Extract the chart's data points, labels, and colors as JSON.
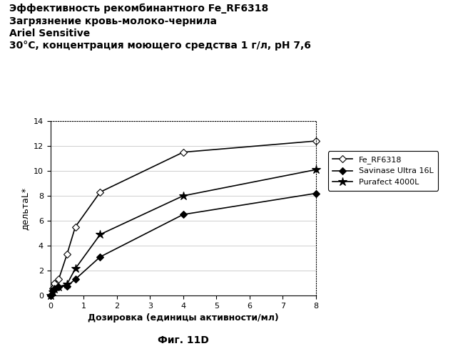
{
  "title_lines": [
    "Эффективность рекомбинантного Fe_RF6318",
    "Загрязнение кровь-молоко-чернила",
    "Ariel Sensitive",
    "30°C, концентрация моющего средства 1 г/л, pH 7,6"
  ],
  "xlabel": "Дозировка (единицы активности/мл)",
  "ylabel": "дельтаL*",
  "figcaption": "Фиг. 11D",
  "xlim": [
    0,
    8
  ],
  "ylim": [
    0,
    14
  ],
  "xticks": [
    0,
    1,
    2,
    3,
    4,
    5,
    6,
    7,
    8
  ],
  "yticks": [
    0,
    2,
    4,
    6,
    8,
    10,
    12,
    14
  ],
  "series": [
    {
      "label": "Fe_RF6318",
      "x": [
        0,
        0.0625,
        0.125,
        0.25,
        0.5,
        0.75,
        1.5,
        4.0,
        8.0
      ],
      "y": [
        0,
        0.6,
        1.0,
        1.3,
        3.3,
        5.5,
        8.3,
        11.5,
        12.4
      ],
      "marker": "D",
      "markersize": 5,
      "markerfacecolor": "white",
      "markeredgecolor": "#000000",
      "color": "#000000",
      "linewidth": 1.2
    },
    {
      "label": "Savinase Ultra 16L",
      "x": [
        0,
        0.0625,
        0.125,
        0.25,
        0.5,
        0.75,
        1.5,
        4.0,
        8.0
      ],
      "y": [
        0,
        0.4,
        0.5,
        0.7,
        0.75,
        1.3,
        3.1,
        6.5,
        8.2
      ],
      "marker": "D",
      "markersize": 5,
      "markerfacecolor": "#000000",
      "markeredgecolor": "#000000",
      "color": "#000000",
      "linewidth": 1.2
    },
    {
      "label": "Purafect 4000L",
      "x": [
        0,
        0.0625,
        0.125,
        0.25,
        0.5,
        0.75,
        1.5,
        4.0,
        8.0
      ],
      "y": [
        0,
        0.3,
        0.5,
        0.7,
        0.9,
        2.15,
        4.9,
        8.0,
        10.1
      ],
      "marker": "*",
      "markersize": 9,
      "markerfacecolor": "#000000",
      "markeredgecolor": "#000000",
      "color": "#000000",
      "linewidth": 1.2
    }
  ],
  "background_color": "#ffffff",
  "grid_color": "#bbbbbb",
  "title_fontsize": 10,
  "axis_fontsize": 9,
  "legend_fontsize": 8
}
